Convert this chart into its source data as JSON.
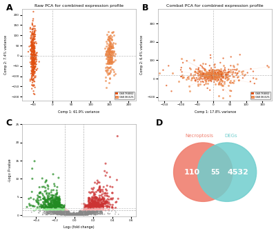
{
  "panel_A_title": "Raw PCA for combined expression profile",
  "panel_B_title": "Combat PCA for combined expression profile",
  "panel_A_xlabel": "Comp 1: 61.9% variance",
  "panel_A_ylabel": "Comp 2: 7.4% variance",
  "panel_B_xlabel": "Comp 1: 17.8% variance",
  "panel_B_ylabel": "Comp 2: 6.4% variance",
  "panel_C_xlabel": "Log₂ (fold change)",
  "panel_C_ylabel": "-Log₁₀ P-value",
  "panel_D_label1": "Necroptosis",
  "panel_D_label2": "DEGs",
  "panel_D_val1": 110,
  "panel_D_val2": 55,
  "panel_D_val3": 4532,
  "color_orange_dark": "#E05010",
  "color_orange_light": "#F0A060",
  "color_green_dark": "#228B22",
  "color_green_fill": "#90EE90",
  "color_red_dark": "#CC3333",
  "color_red_fill": "#FFAAAA",
  "color_gray": "#555555",
  "color_venn1": "#F08070",
  "color_venn2": "#70CECE",
  "seed": 42
}
